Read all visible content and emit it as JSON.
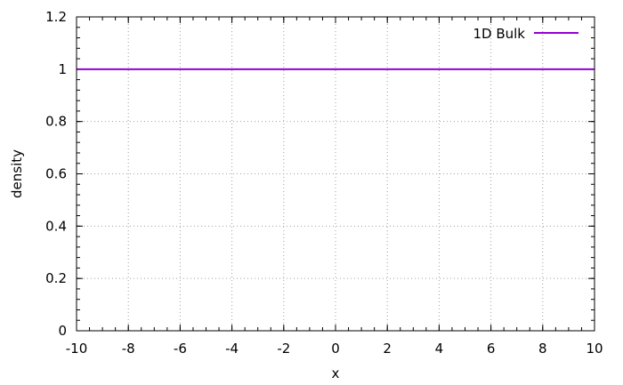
{
  "chart_data": {
    "type": "line",
    "xlabel": "x",
    "ylabel": "density",
    "xlim": [
      -10,
      10
    ],
    "ylim": [
      0,
      1.2
    ],
    "x_ticks": [
      -10,
      -8,
      -6,
      -4,
      -2,
      0,
      2,
      4,
      6,
      8,
      10
    ],
    "x_tick_labels": [
      "-10",
      "-8",
      "-6",
      "-4",
      "-2",
      "0",
      "2",
      "4",
      "6",
      "8",
      "10"
    ],
    "y_ticks": [
      0,
      0.2,
      0.4,
      0.6,
      0.8,
      1,
      1.2
    ],
    "y_tick_labels": [
      "0",
      "0.2",
      "0.4",
      "0.6",
      "0.8",
      "1",
      "1.2"
    ],
    "grid": true,
    "legend_position": "top-right",
    "series": [
      {
        "name": "1D Bulk",
        "color": "#9400d3",
        "x": [
          -10,
          10
        ],
        "y": [
          1,
          1
        ]
      }
    ]
  }
}
